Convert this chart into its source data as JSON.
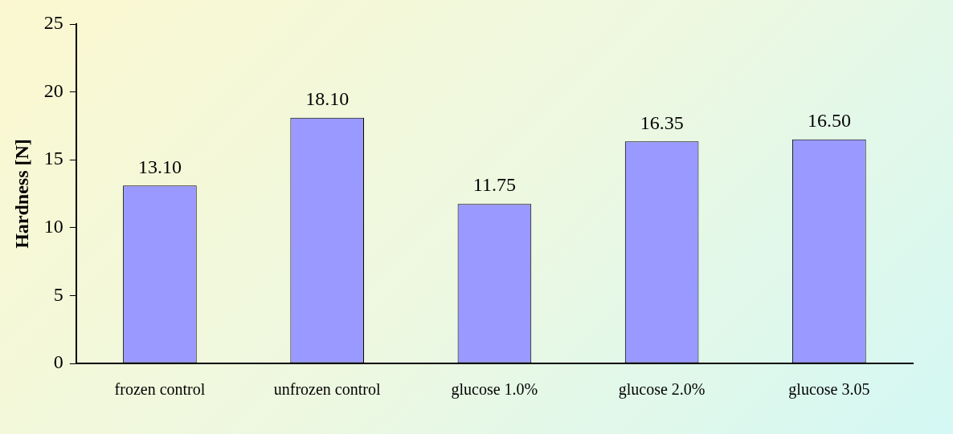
{
  "chart_data": {
    "type": "bar",
    "ylabel": "Hardness [N]",
    "categories": [
      "frozen control",
      "unfrozen control",
      "glucose 1.0%",
      "glucose 2.0%",
      "glucose 3.05"
    ],
    "values": [
      13.1,
      18.1,
      11.75,
      16.35,
      16.5
    ],
    "value_labels": [
      "13.10",
      "18.10",
      "11.75",
      "16.35",
      "16.50"
    ],
    "color": "#9999ff",
    "ylim": [
      0,
      25
    ],
    "yticks": [
      0,
      5,
      10,
      15,
      20,
      25
    ],
    "grid": false,
    "legend": false
  }
}
